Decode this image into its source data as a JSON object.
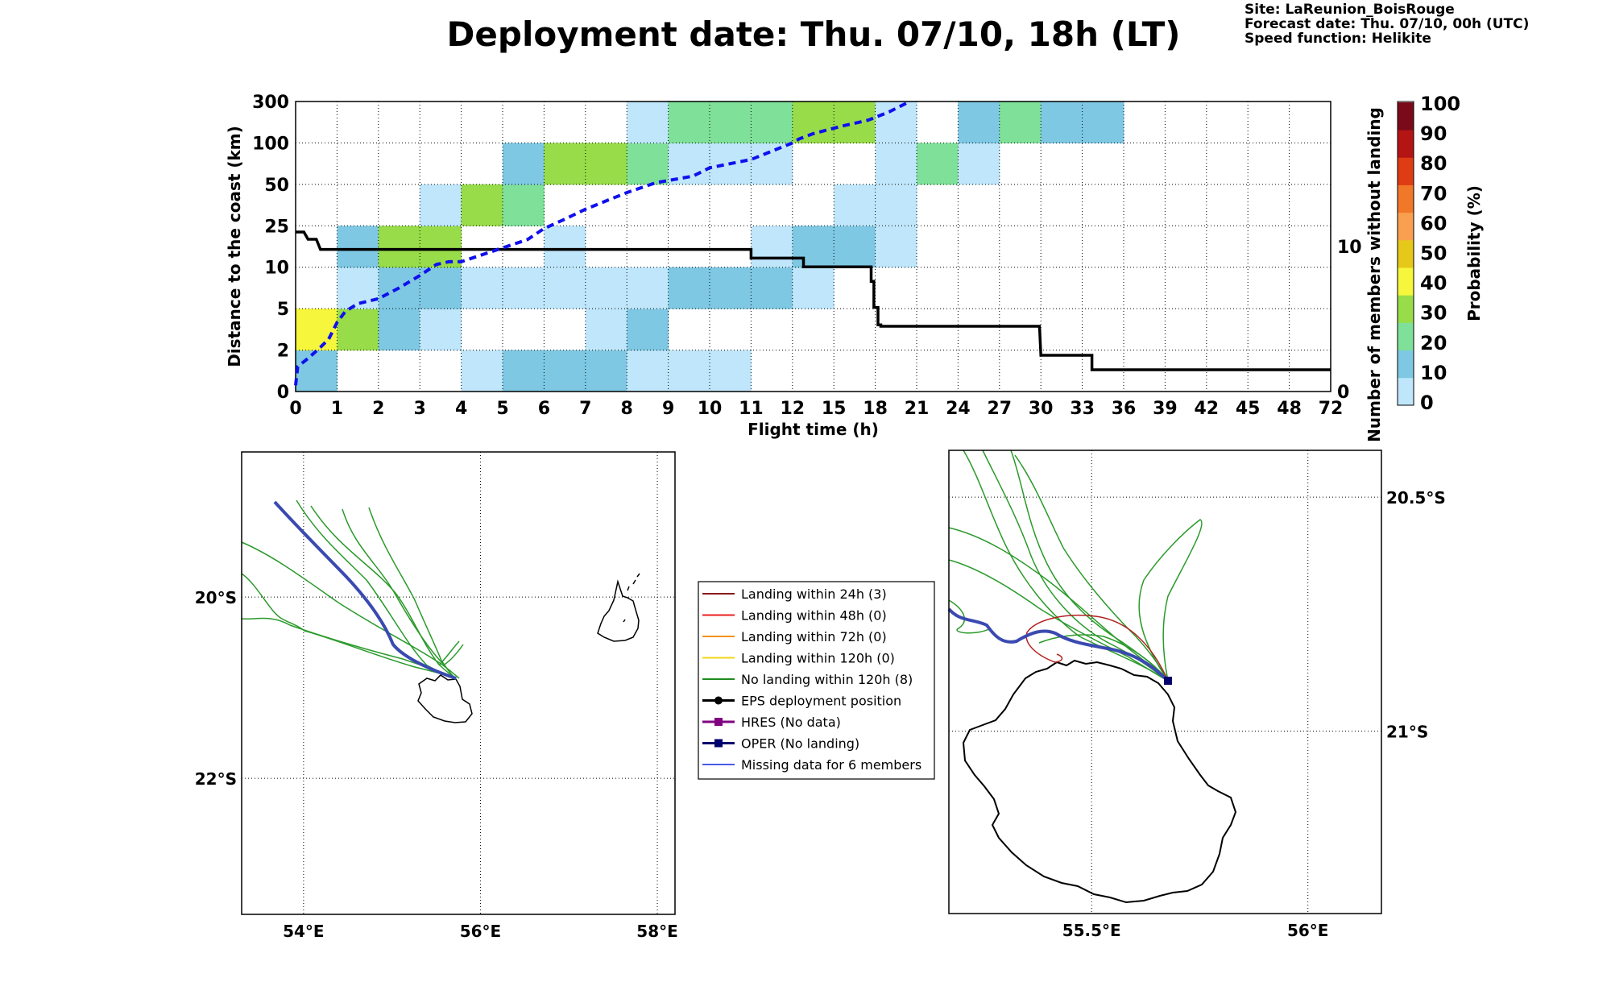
{
  "header": {
    "title": "Deployment date: Thu. 07/10, 18h (LT)",
    "site": "Site: LaReunion_BoisRouge",
    "forecast": "Forecast date: Thu. 07/10, 00h (UTC)",
    "speed": "Speed function: Helikite"
  },
  "chart_data": [
    {
      "type": "heatmap",
      "xlabel": "Flight time (h)",
      "ylabel": "Distance to the coast (km)",
      "y2label": "Number of members without landing",
      "colorbar_label": "Probability (%)",
      "x_ticks": [
        "0",
        "1",
        "2",
        "3",
        "4",
        "5",
        "6",
        "7",
        "8",
        "9",
        "10",
        "11",
        "12",
        "15",
        "18",
        "21",
        "24",
        "27",
        "30",
        "33",
        "36",
        "39",
        "42",
        "45",
        "48",
        "72"
      ],
      "y_ticks": [
        "0",
        "2",
        "5",
        "10",
        "25",
        "50",
        "100",
        "300"
      ],
      "y2_ticks": [
        "0",
        "10"
      ],
      "y2_range": [
        0,
        20
      ],
      "grid": true,
      "colorbar": {
        "ticks": [
          "0",
          "10",
          "20",
          "30",
          "40",
          "50",
          "60",
          "70",
          "80",
          "90",
          "100"
        ],
        "colors": [
          "#bfe6fa",
          "#7ec8e3",
          "#7fe09a",
          "#98dc4a",
          "#f6f63c",
          "#e6c81a",
          "#f8a050",
          "#f07828",
          "#e03c14",
          "#b41414",
          "#7a0a1a"
        ]
      },
      "cells_note": "cells listed as [x_bin_index, y_bin_index, probability_class]",
      "cells": [
        [
          0,
          0,
          1
        ],
        [
          0,
          1,
          4
        ],
        [
          1,
          1,
          3
        ],
        [
          2,
          1,
          1
        ],
        [
          3,
          1,
          0
        ],
        [
          4,
          0,
          0
        ],
        [
          5,
          0,
          1
        ],
        [
          6,
          0,
          1
        ],
        [
          7,
          0,
          1
        ],
        [
          7,
          1,
          0
        ],
        [
          8,
          0,
          0
        ],
        [
          8,
          1,
          1
        ],
        [
          9,
          0,
          0
        ],
        [
          10,
          0,
          0
        ],
        [
          1,
          2,
          0
        ],
        [
          2,
          2,
          1
        ],
        [
          3,
          2,
          1
        ],
        [
          4,
          2,
          0
        ],
        [
          5,
          2,
          0
        ],
        [
          6,
          2,
          0
        ],
        [
          7,
          2,
          0
        ],
        [
          8,
          2,
          0
        ],
        [
          9,
          2,
          1
        ],
        [
          10,
          2,
          1
        ],
        [
          11,
          2,
          1
        ],
        [
          12,
          2,
          0
        ],
        [
          1,
          3,
          1
        ],
        [
          2,
          3,
          3
        ],
        [
          3,
          3,
          3
        ],
        [
          6,
          3,
          0
        ],
        [
          11,
          3,
          0
        ],
        [
          12,
          3,
          1
        ],
        [
          13,
          3,
          1
        ],
        [
          14,
          3,
          0
        ],
        [
          3,
          4,
          0
        ],
        [
          4,
          4,
          3
        ],
        [
          5,
          4,
          2
        ],
        [
          13,
          4,
          0
        ],
        [
          14,
          4,
          0
        ],
        [
          5,
          5,
          1
        ],
        [
          6,
          5,
          3
        ],
        [
          7,
          5,
          3
        ],
        [
          8,
          5,
          2
        ],
        [
          9,
          5,
          0
        ],
        [
          10,
          5,
          0
        ],
        [
          11,
          5,
          0
        ],
        [
          14,
          5,
          0
        ],
        [
          15,
          5,
          2
        ],
        [
          16,
          5,
          0
        ],
        [
          8,
          6,
          0
        ],
        [
          9,
          6,
          2
        ],
        [
          10,
          6,
          2
        ],
        [
          11,
          6,
          2
        ],
        [
          12,
          6,
          3
        ],
        [
          13,
          6,
          3
        ],
        [
          14,
          6,
          0
        ],
        [
          16,
          6,
          1
        ],
        [
          17,
          6,
          2
        ],
        [
          18,
          6,
          1
        ],
        [
          19,
          6,
          1
        ]
      ],
      "series": [
        {
          "name": "",
          "style": "black-solid",
          "x_h": [
            0,
            0.2,
            0.3,
            0.5,
            0.6,
            1,
            10,
            11,
            11,
            12.8,
            12.8,
            17.7,
            17.7,
            17.9,
            17.9,
            18.2,
            18.2,
            18.4,
            18.4,
            29.9,
            30,
            33.7,
            33.7,
            72
          ],
          "members": [
            11,
            11,
            10.5,
            10.5,
            9.8,
            9.8,
            9.8,
            9.8,
            9.2,
            9.2,
            8.6,
            8.6,
            7.6,
            7.6,
            5.8,
            5.8,
            4.6,
            4.6,
            4.5,
            4.5,
            2.5,
            2.5,
            1.5,
            1.5
          ]
        },
        {
          "name": "",
          "style": "blue-dashed",
          "x_h": [
            0,
            0.05,
            0.3,
            0.6,
            0.8,
            1,
            1.2,
            1.5,
            2,
            2.5,
            3,
            3.4,
            3.7,
            4,
            4.4,
            5,
            5.6,
            6,
            6.5,
            7,
            8,
            8.7,
            9.6,
            10,
            11,
            11.5,
            12,
            12.5,
            13.5,
            15.5,
            17.5,
            19,
            20.5
          ],
          "distance_km": [
            0.3,
            1.2,
            1.6,
            2.2,
            2.8,
            4,
            4.8,
            5.6,
            6.2,
            7.5,
            9,
            11,
            12,
            12,
            14,
            17,
            20,
            24,
            29,
            35,
            45,
            52,
            60,
            70,
            80,
            90,
            100,
            120,
            145,
            180,
            210,
            250,
            300
          ]
        }
      ]
    },
    {
      "type": "map",
      "name": "overview",
      "lon_ticks": [
        "54°E",
        "56°E",
        "58°E"
      ],
      "lat_ticks": [
        "20°S",
        "22°S"
      ],
      "lon_range": [
        53.3,
        58.2
      ],
      "lat_range": [
        23.5,
        18.4
      ]
    },
    {
      "type": "map",
      "name": "zoom",
      "lon_ticks": [
        "55.5°E",
        "56°E"
      ],
      "lat_ticks": [
        "20.5°S",
        "21°S"
      ],
      "lon_range": [
        55.17,
        56.17
      ],
      "lat_range": [
        21.39,
        20.4
      ]
    }
  ],
  "legend": {
    "items": [
      {
        "label": "Landing within 24h (3)",
        "color": "#8b1a1a",
        "marker": "none"
      },
      {
        "label": "Landing within 48h (0)",
        "color": "#e8201c",
        "marker": "none"
      },
      {
        "label": "Landing within 72h (0)",
        "color": "#f5921e",
        "marker": "none"
      },
      {
        "label": "Landing within 120h (0)",
        "color": "#f3d51a",
        "marker": "none"
      },
      {
        "label": "No landing within 120h (8)",
        "color": "#1e8c1e",
        "marker": "none"
      },
      {
        "label": "EPS deployment position",
        "color": "#000000",
        "marker": "circle"
      },
      {
        "label": "HRES (No data)",
        "color": "#800080",
        "marker": "square"
      },
      {
        "label": "OPER (No landing)",
        "color": "#00006e",
        "marker": "square"
      },
      {
        "label": "Missing data for 6 members",
        "color": "#4a5ae8",
        "marker": "none"
      }
    ]
  }
}
